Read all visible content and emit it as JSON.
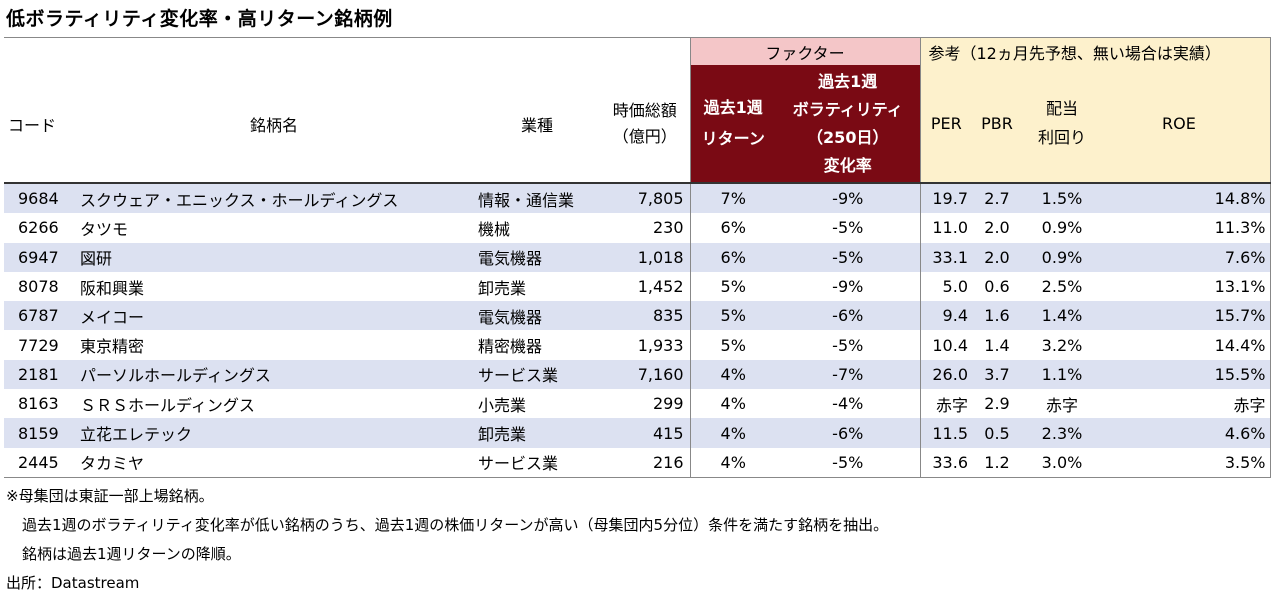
{
  "title": "低ボラティリティ変化率・高リターン銘柄例",
  "header": {
    "factor_group": "ファクター",
    "ref_group": "参考（12ヵ月先予想、無い場合は実績）",
    "code": "コード",
    "name": "銘柄名",
    "industry": "業種",
    "mcap_line1": "時価総額",
    "mcap_line2": "（億円）",
    "ret_line1": "過去1週",
    "ret_line2": "リターン",
    "vol_line1": "過去1週",
    "vol_line2": "ボラティリティ",
    "vol_line3": "（250日）",
    "vol_line4": "変化率",
    "per": "PER",
    "pbr": "PBR",
    "div_line1": "配当",
    "div_line2": "利回り",
    "roe": "ROE"
  },
  "rows": [
    {
      "code": "9684",
      "name": "スクウェア・エニックス・ホールディングス",
      "industry": "情報・通信業",
      "mcap": "7,805",
      "ret": "7%",
      "vol": "-9%",
      "per": "19.7",
      "pbr": "2.7",
      "div": "1.5%",
      "roe": "14.8%"
    },
    {
      "code": "6266",
      "name": "タツモ",
      "industry": "機械",
      "mcap": "230",
      "ret": "6%",
      "vol": "-5%",
      "per": "11.0",
      "pbr": "2.0",
      "div": "0.9%",
      "roe": "11.3%"
    },
    {
      "code": "6947",
      "name": "図研",
      "industry": "電気機器",
      "mcap": "1,018",
      "ret": "6%",
      "vol": "-5%",
      "per": "33.1",
      "pbr": "2.0",
      "div": "0.9%",
      "roe": "7.6%"
    },
    {
      "code": "8078",
      "name": "阪和興業",
      "industry": "卸売業",
      "mcap": "1,452",
      "ret": "5%",
      "vol": "-9%",
      "per": "5.0",
      "pbr": "0.6",
      "div": "2.5%",
      "roe": "13.1%"
    },
    {
      "code": "6787",
      "name": "メイコー",
      "industry": "電気機器",
      "mcap": "835",
      "ret": "5%",
      "vol": "-6%",
      "per": "9.4",
      "pbr": "1.6",
      "div": "1.4%",
      "roe": "15.7%"
    },
    {
      "code": "7729",
      "name": "東京精密",
      "industry": "精密機器",
      "mcap": "1,933",
      "ret": "5%",
      "vol": "-5%",
      "per": "10.4",
      "pbr": "1.4",
      "div": "3.2%",
      "roe": "14.4%"
    },
    {
      "code": "2181",
      "name": "パーソルホールディングス",
      "industry": "サービス業",
      "mcap": "7,160",
      "ret": "4%",
      "vol": "-7%",
      "per": "26.0",
      "pbr": "3.7",
      "div": "1.1%",
      "roe": "15.5%"
    },
    {
      "code": "8163",
      "name": "ＳＲＳホールディングス",
      "industry": "小売業",
      "mcap": "299",
      "ret": "4%",
      "vol": "-4%",
      "per": "赤字",
      "pbr": "2.9",
      "div": "赤字",
      "roe": "赤字"
    },
    {
      "code": "8159",
      "name": "立花エレテック",
      "industry": "卸売業",
      "mcap": "415",
      "ret": "4%",
      "vol": "-6%",
      "per": "11.5",
      "pbr": "0.5",
      "div": "2.3%",
      "roe": "4.6%"
    },
    {
      "code": "2445",
      "name": "タカミヤ",
      "industry": "サービス業",
      "mcap": "216",
      "ret": "4%",
      "vol": "-5%",
      "per": "33.6",
      "pbr": "1.2",
      "div": "3.0%",
      "roe": "3.5%"
    }
  ],
  "notes": {
    "line1": "※母集団は東証一部上場銘柄。",
    "line2": "過去1週のボラティリティ変化率が低い銘柄のうち、過去1週の株価リターンが高い（母集団内5分位）条件を満たす銘柄を抽出。",
    "line3": "銘柄は過去1週リターンの降順。",
    "source": "出所：Datastream"
  },
  "colors": {
    "factor_header_bg": "#7a0a14",
    "factor_group_bg": "#f4c6c8",
    "ref_bg": "#fdf1cc",
    "stripe_bg": "#dce1f1"
  }
}
